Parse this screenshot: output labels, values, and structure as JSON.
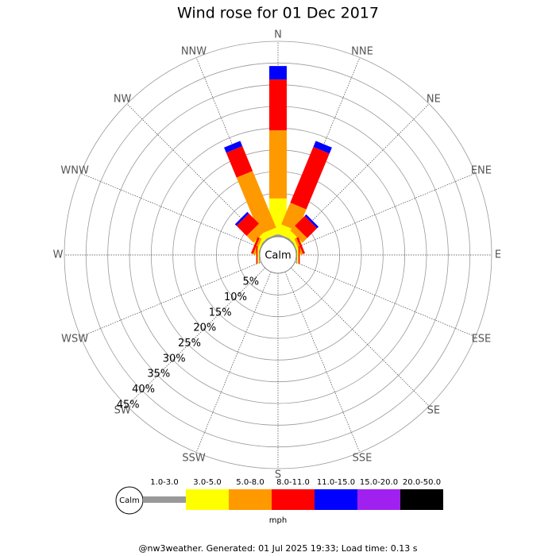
{
  "chart_data": {
    "type": "windrose",
    "title": "Wind rose for 01 Dec 2017",
    "directions": [
      "N",
      "NNE",
      "NE",
      "ENE",
      "E",
      "ESE",
      "SE",
      "SSE",
      "S",
      "SSW",
      "SW",
      "WSW",
      "W",
      "WNW",
      "NW",
      "NNW"
    ],
    "series": [
      {
        "name": "1.0-3.0",
        "color": "#999999",
        "values": [
          0.5,
          0.3,
          0.3,
          0.2,
          0.2,
          0,
          0,
          0,
          0,
          0,
          0,
          0,
          0.2,
          0.2,
          0.3,
          0.3
        ]
      },
      {
        "name": "3.0-5.0",
        "color": "#ffff00",
        "values": [
          8.3,
          2.3,
          1.5,
          0.5,
          0.3,
          0,
          0,
          0,
          0,
          0,
          0,
          0,
          0.3,
          0.5,
          1.5,
          1.5
        ]
      },
      {
        "name": "5.0-8.0",
        "color": "#ff9900",
        "values": [
          15.7,
          5.4,
          1.5,
          0.5,
          0,
          0,
          0,
          0,
          0,
          0,
          0,
          0,
          0,
          0.5,
          2.2,
          14.1
        ]
      },
      {
        "name": "8.0-11.0",
        "color": "#ff0000",
        "values": [
          11.7,
          13.9,
          3.2,
          0.5,
          0.3,
          0,
          0,
          0,
          0,
          0,
          0,
          0,
          0.3,
          0.5,
          3.3,
          6.2
        ]
      },
      {
        "name": "11.0-15.0",
        "color": "#0000ff",
        "values": [
          3.1,
          1.5,
          0.5,
          0,
          0,
          0,
          0,
          0,
          0,
          0,
          0,
          0,
          0,
          0,
          0.5,
          1.3
        ]
      },
      {
        "name": "15.0-20.0",
        "color": "#a020f0",
        "values": [
          0,
          0,
          0,
          0,
          0,
          0,
          0,
          0,
          0,
          0,
          0,
          0,
          0,
          0,
          0,
          0
        ]
      },
      {
        "name": "20.0-50.0",
        "color": "#000000",
        "values": [
          0,
          0,
          0,
          0,
          0,
          0,
          0,
          0,
          0,
          0,
          0,
          0,
          0,
          0,
          0,
          0
        ]
      }
    ],
    "ylim": [
      0,
      45
    ],
    "yticks": [
      {
        "value": 5,
        "label": "5%"
      },
      {
        "value": 10,
        "label": "10%"
      },
      {
        "value": 15,
        "label": "15%"
      },
      {
        "value": 20,
        "label": "20%"
      },
      {
        "value": 25,
        "label": "25%"
      },
      {
        "value": 30,
        "label": "30%"
      },
      {
        "value": 35,
        "label": "35%"
      },
      {
        "value": 40,
        "label": "40%"
      },
      {
        "value": 45,
        "label": "45%"
      }
    ],
    "calm_label": "Calm",
    "unit": "mph",
    "footer": "@nw3weather. Generated: 01 Jul 2025 19:33; Load time: 0.13 s"
  }
}
